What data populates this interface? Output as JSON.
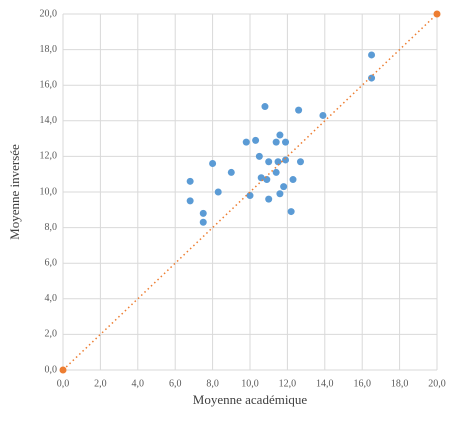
{
  "chart_data": {
    "type": "scatter",
    "x_label": "Moyenne académique",
    "y_label": "Moyenne inversée",
    "xlim": [
      0,
      20
    ],
    "ylim": [
      0,
      20
    ],
    "xticks": [
      {
        "value": 0,
        "label": "0,0"
      },
      {
        "value": 2,
        "label": "2,0"
      },
      {
        "value": 4,
        "label": "4,0"
      },
      {
        "value": 6,
        "label": "6,0"
      },
      {
        "value": 8,
        "label": "8,0"
      },
      {
        "value": 10,
        "label": "10,0"
      },
      {
        "value": 12,
        "label": "12,0"
      },
      {
        "value": 14,
        "label": "14,0"
      },
      {
        "value": 16,
        "label": "16,0"
      },
      {
        "value": 18,
        "label": "18,0"
      },
      {
        "value": 20,
        "label": "20,0"
      }
    ],
    "yticks": [
      {
        "value": 0,
        "label": "0,0"
      },
      {
        "value": 2,
        "label": "2,0"
      },
      {
        "value": 4,
        "label": "4,0"
      },
      {
        "value": 6,
        "label": "6,0"
      },
      {
        "value": 8,
        "label": "8,0"
      },
      {
        "value": 10,
        "label": "10,0"
      },
      {
        "value": 12,
        "label": "12,0"
      },
      {
        "value": 14,
        "label": "14,0"
      },
      {
        "value": 16,
        "label": "16,0"
      },
      {
        "value": 18,
        "label": "18,0"
      },
      {
        "value": 20,
        "label": "20,0"
      }
    ],
    "grid": true,
    "series": [
      {
        "color": "#5b9bd5",
        "x": [
          16.5,
          16.5,
          13.9,
          12.6,
          10.8,
          11.6,
          10.3,
          9.8,
          11.4,
          11.9,
          10.5,
          11.0,
          11.5,
          11.9,
          12.7,
          8.0,
          9.0,
          11.4,
          6.8,
          10.6,
          10.9,
          12.3,
          11.8,
          8.3,
          10.0,
          11.6,
          11.0,
          6.8,
          7.5,
          7.5,
          12.2
        ],
        "y": [
          17.7,
          16.4,
          14.3,
          14.6,
          14.8,
          13.2,
          12.9,
          12.8,
          12.8,
          12.8,
          12.0,
          11.7,
          11.7,
          11.8,
          11.7,
          11.6,
          11.1,
          11.1,
          10.6,
          10.8,
          10.7,
          10.7,
          10.3,
          10.0,
          9.8,
          9.9,
          9.6,
          9.5,
          8.8,
          8.3,
          8.9
        ]
      },
      {
        "color": "#ed7d31",
        "line": "dotted",
        "x": [
          0,
          20
        ],
        "y": [
          0,
          20
        ]
      }
    ]
  }
}
